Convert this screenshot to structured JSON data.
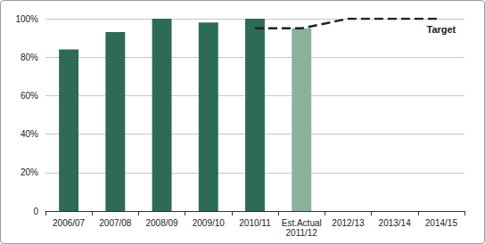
{
  "chart_data": {
    "type": "bar",
    "categories": [
      "2006/07",
      "2007/08",
      "2008/09",
      "2009/10",
      "2010/11",
      "Est.Actual\n2011/12",
      "2012/13",
      "2013/14",
      "2014/15"
    ],
    "series": [
      {
        "type": "bar",
        "values": [
          84,
          93,
          100,
          98,
          100,
          95,
          null,
          null,
          null
        ],
        "colors": [
          "#2e6b55",
          "#2e6b55",
          "#2e6b55",
          "#2e6b55",
          "#2e6b55",
          "#8cb09c",
          null,
          null,
          null
        ]
      },
      {
        "name": "Target",
        "type": "line",
        "line_style": "dashed",
        "color": "#222222",
        "values": [
          null,
          null,
          null,
          null,
          95,
          95,
          100,
          100,
          100
        ]
      }
    ],
    "ylim": [
      0,
      100
    ],
    "yticks": [
      0,
      {
        "value": 20,
        "label": "20%"
      },
      {
        "value": 40,
        "label": "40%"
      },
      {
        "value": 60,
        "label": "60%"
      },
      {
        "value": 80,
        "label": "80%"
      },
      {
        "value": 100,
        "label": "100%"
      }
    ],
    "grid": true
  }
}
